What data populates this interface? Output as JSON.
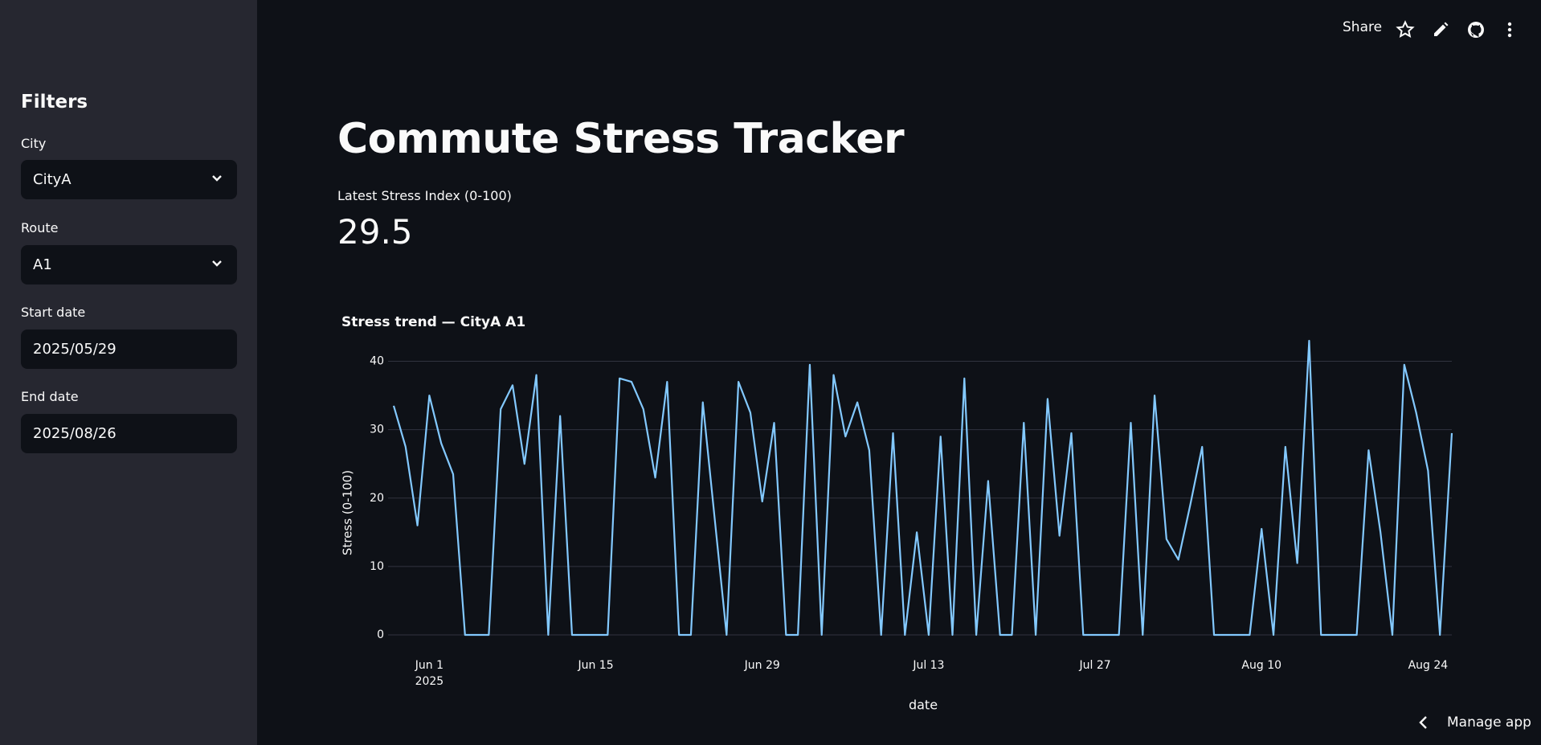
{
  "sidebar": {
    "heading": "Filters",
    "fields": [
      {
        "label": "City",
        "value": "CityA"
      },
      {
        "label": "Route",
        "value": "A1"
      },
      {
        "label": "Start date",
        "value": "2025/05/29"
      },
      {
        "label": "End date",
        "value": "2025/08/26"
      }
    ]
  },
  "toolbar": {
    "share": "Share",
    "manage": "Manage app"
  },
  "header": {
    "title": "Commute Stress Tracker"
  },
  "metric": {
    "label": "Latest Stress Index (0-100)",
    "value": 29.5
  },
  "chart_data": {
    "type": "line",
    "title": "Stress trend — CityA A1",
    "x_label": "date",
    "y_label": "Stress (0-100)",
    "color": "#83c9ff",
    "grid": true,
    "x": [
      "2025-05-29",
      "2025-05-30",
      "2025-05-31",
      "2025-06-01",
      "2025-06-02",
      "2025-06-03",
      "2025-06-04",
      "2025-06-05",
      "2025-06-06",
      "2025-06-07",
      "2025-06-08",
      "2025-06-09",
      "2025-06-10",
      "2025-06-11",
      "2025-06-12",
      "2025-06-13",
      "2025-06-14",
      "2025-06-15",
      "2025-06-16",
      "2025-06-17",
      "2025-06-18",
      "2025-06-19",
      "2025-06-20",
      "2025-06-21",
      "2025-06-22",
      "2025-06-23",
      "2025-06-24",
      "2025-06-25",
      "2025-06-26",
      "2025-06-27",
      "2025-06-28",
      "2025-06-29",
      "2025-06-30",
      "2025-07-01",
      "2025-07-02",
      "2025-07-03",
      "2025-07-04",
      "2025-07-05",
      "2025-07-06",
      "2025-07-07",
      "2025-07-08",
      "2025-07-09",
      "2025-07-10",
      "2025-07-11",
      "2025-07-12",
      "2025-07-13",
      "2025-07-14",
      "2025-07-15",
      "2025-07-16",
      "2025-07-17",
      "2025-07-18",
      "2025-07-19",
      "2025-07-20",
      "2025-07-21",
      "2025-07-22",
      "2025-07-23",
      "2025-07-24",
      "2025-07-25",
      "2025-07-26",
      "2025-07-27",
      "2025-07-28",
      "2025-07-29",
      "2025-07-30",
      "2025-07-31",
      "2025-08-01",
      "2025-08-02",
      "2025-08-03",
      "2025-08-04",
      "2025-08-05",
      "2025-08-06",
      "2025-08-07",
      "2025-08-08",
      "2025-08-09",
      "2025-08-10",
      "2025-08-11",
      "2025-08-12",
      "2025-08-13",
      "2025-08-14",
      "2025-08-15",
      "2025-08-16",
      "2025-08-17",
      "2025-08-18",
      "2025-08-19",
      "2025-08-20",
      "2025-08-21",
      "2025-08-22",
      "2025-08-23",
      "2025-08-24",
      "2025-08-25",
      "2025-08-26"
    ],
    "values": [
      33.5,
      27.5,
      16,
      35,
      28,
      23.5,
      0,
      0,
      0,
      33,
      36.5,
      25,
      38,
      0,
      32,
      0,
      0,
      0,
      0,
      37.5,
      37,
      33,
      23,
      37,
      0,
      0,
      34,
      17,
      0,
      37,
      32.5,
      19.5,
      31,
      0,
      0,
      39.5,
      0,
      38,
      29,
      34,
      27,
      0,
      29.5,
      0,
      15,
      0,
      29,
      0,
      37.5,
      0,
      22.5,
      0,
      0,
      31,
      0,
      34.5,
      14.5,
      29.5,
      0,
      0,
      0,
      0,
      31,
      0,
      35,
      14,
      11,
      19,
      27.5,
      0,
      0,
      0,
      0,
      15.5,
      0,
      27.5,
      10.5,
      43,
      0,
      0,
      0,
      0,
      27,
      15,
      0,
      39.5,
      32.5,
      24,
      0,
      29.5
    ],
    "xlim": [
      "2025-05-29",
      "2025-08-26"
    ],
    "xticks": [
      {
        "value": "2025-06-01",
        "label": "Jun 1"
      },
      {
        "value": "2025-06-15",
        "label": "Jun 15"
      },
      {
        "value": "2025-06-29",
        "label": "Jun 29"
      },
      {
        "value": "2025-07-13",
        "label": "Jul 13"
      },
      {
        "value": "2025-07-27",
        "label": "Jul 27"
      },
      {
        "value": "2025-08-10",
        "label": "Aug 10"
      },
      {
        "value": "2025-08-24",
        "label": "Aug 24"
      }
    ],
    "x_year_label": "2025",
    "ylim": [
      0,
      45
    ],
    "yticks": [
      0,
      10,
      20,
      30,
      40
    ]
  }
}
